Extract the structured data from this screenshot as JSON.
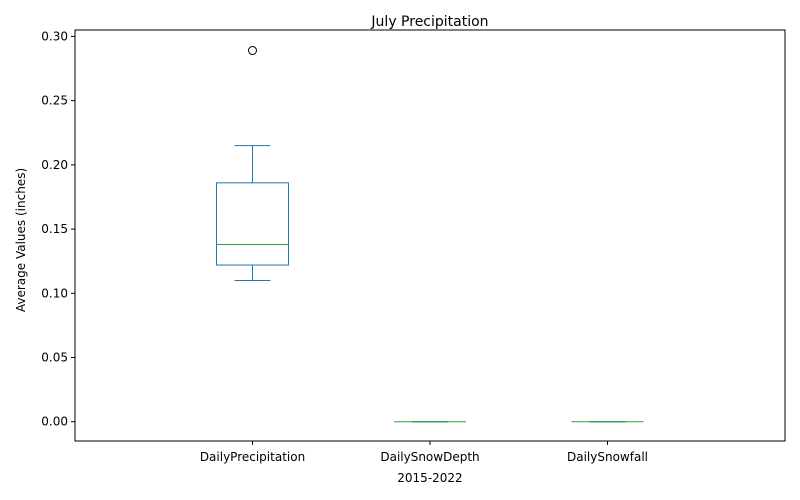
{
  "chart_data": {
    "type": "box",
    "title": "July Precipitation",
    "xlabel": "2015-2022",
    "ylabel": "Average Values (inches)",
    "ylim": [
      -0.015,
      0.305
    ],
    "yticks": [
      0.0,
      0.05,
      0.1,
      0.15,
      0.2,
      0.25,
      0.3
    ],
    "ytick_labels": [
      "0.00",
      "0.05",
      "0.10",
      "0.15",
      "0.20",
      "0.25",
      "0.30"
    ],
    "grid": false,
    "box_color": "#1f77b4",
    "median_color": "#2ca02c",
    "categories": [
      "DailyPrecipitation",
      "DailySnowDepth",
      "DailySnowfall"
    ],
    "boxes": [
      {
        "name": "DailyPrecipitation",
        "whisker_low": 0.11,
        "q1": 0.122,
        "median": 0.138,
        "q3": 0.186,
        "whisker_high": 0.215,
        "outliers": [
          0.289
        ]
      },
      {
        "name": "DailySnowDepth",
        "whisker_low": 0.0,
        "q1": 0.0,
        "median": 0.0,
        "q3": 0.0,
        "whisker_high": 0.0,
        "outliers": []
      },
      {
        "name": "DailySnowfall",
        "whisker_low": 0.0,
        "q1": 0.0,
        "median": 0.0,
        "q3": 0.0,
        "whisker_high": 0.0,
        "outliers": []
      }
    ]
  }
}
